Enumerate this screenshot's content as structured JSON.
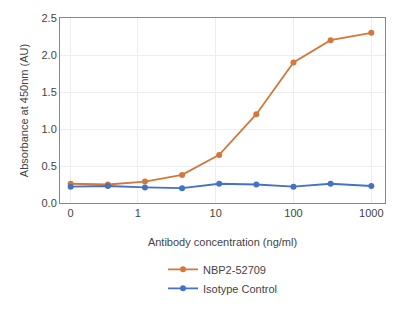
{
  "chart_data": {
    "type": "line",
    "x": [
      0.137,
      0.412,
      1.235,
      3.704,
      11.11,
      33.33,
      100,
      300,
      1000
    ],
    "series": [
      {
        "name": "NBP2-52709",
        "color": "#d4783a",
        "marker": "circle",
        "line_style": "solid",
        "values": [
          0.26,
          0.25,
          0.29,
          0.38,
          0.65,
          1.2,
          1.9,
          2.2,
          2.3
        ]
      },
      {
        "name": "Isotype Control",
        "color": "#4472c4",
        "marker": "circle",
        "line_style": "solid",
        "values": [
          0.22,
          0.23,
          0.21,
          0.2,
          0.26,
          0.25,
          0.22,
          0.26,
          0.23
        ]
      }
    ],
    "x_label": "Antibody concentration (ng/ml)",
    "y_label": "Absorbance at 450nm (AU)",
    "log": "x",
    "xlim": [
      0.1,
      1500
    ],
    "xticks": [
      {
        "value": 0.137,
        "label": "0"
      },
      1,
      10,
      100,
      1000
    ],
    "ylim": [
      0,
      2.5
    ],
    "yticks": [
      {
        "value": 0,
        "label": "0.0"
      },
      0.5,
      {
        "value": 1,
        "label": "1.0"
      },
      1.5,
      {
        "value": 2,
        "label": "2.0"
      },
      2.5
    ],
    "grid": true,
    "legend": "bottom"
  }
}
